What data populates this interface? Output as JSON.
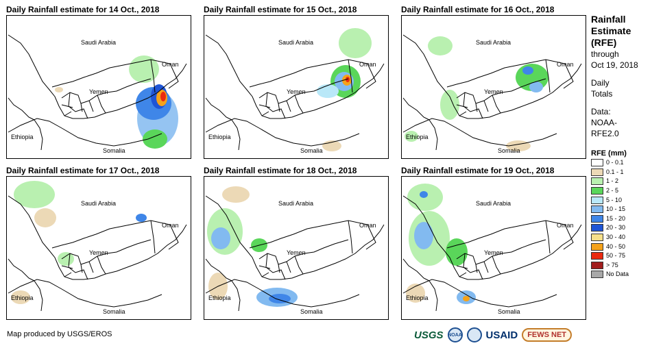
{
  "panels": [
    {
      "title": "Daily Rainfall estimate for 14 Oct., 2018"
    },
    {
      "title": "Daily Rainfall estimate for 15 Oct., 2018"
    },
    {
      "title": "Daily Rainfall estimate for 16 Oct., 2018"
    },
    {
      "title": "Daily Rainfall estimate for 17 Oct., 2018"
    },
    {
      "title": "Daily Rainfall estimate for 18 Oct., 2018"
    },
    {
      "title": "Daily Rainfall estimate for 19 Oct., 2018"
    }
  ],
  "map_labels": {
    "saudi": "Saudi Arabia",
    "oman": "Oman",
    "yemen": "Yemen",
    "ethiopia": "Ethiopia",
    "somalia": "Somalia"
  },
  "sidebar": {
    "title_lines": [
      "Rainfall",
      "Estimate",
      "(RFE)"
    ],
    "through": "through",
    "date": "Oct 19, 2018",
    "daily": "Daily",
    "totals": "Totals",
    "data_label": "Data:",
    "data_source_1": "NOAA-",
    "data_source_2": "RFE2.0"
  },
  "legend": {
    "title": "RFE (mm)",
    "items": [
      {
        "label": "0 - 0.1",
        "color": "#ffffff"
      },
      {
        "label": "0.1 - 1",
        "color": "#ecd9b6"
      },
      {
        "label": "1 - 2",
        "color": "#b9f0b0"
      },
      {
        "label": "2 - 5",
        "color": "#5ad65a"
      },
      {
        "label": "5 - 10",
        "color": "#b9e8f8"
      },
      {
        "label": "10 - 15",
        "color": "#82baf0"
      },
      {
        "label": "15 - 20",
        "color": "#3f86e8"
      },
      {
        "label": "20 - 30",
        "color": "#1f55d6"
      },
      {
        "label": "30 - 40",
        "color": "#f7e08a"
      },
      {
        "label": "40 - 50",
        "color": "#f5a21a"
      },
      {
        "label": "50 - 75",
        "color": "#ea2a10"
      },
      {
        "label": "> 75",
        "color": "#a11d1d"
      },
      {
        "label": "No Data",
        "color": "#a8a8a8"
      }
    ]
  },
  "credit": "Map produced by USGS/EROS",
  "logos": {
    "usgs": "USGS",
    "noaa": "NOAA",
    "usaid": "USAID",
    "fews": "FEWS NET"
  }
}
